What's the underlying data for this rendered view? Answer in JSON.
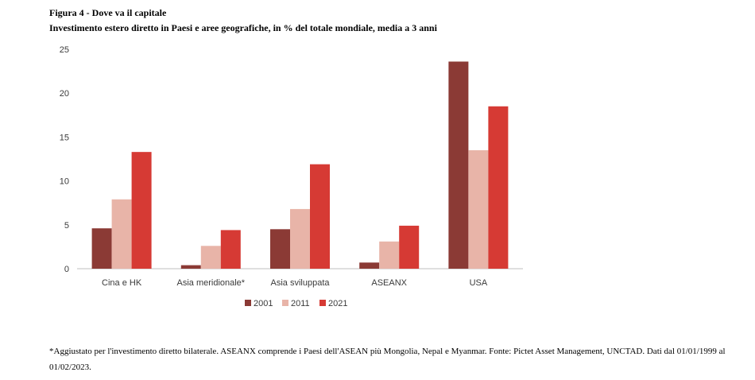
{
  "figure": {
    "title": "Figura 4 - Dove va il capitale",
    "subtitle": "Investimento estero diretto in Paesi e aree geografiche, in % del totale mondiale, media a 3 anni"
  },
  "chart_data": {
    "type": "bar",
    "categories": [
      "Cina e HK",
      "Asia meridionale*",
      "Asia sviluppata",
      "ASEANX",
      "USA"
    ],
    "series": [
      {
        "name": "2001",
        "color": "#8b3a35",
        "values": [
          4.6,
          0.4,
          4.5,
          0.7,
          23.6
        ]
      },
      {
        "name": "2011",
        "color": "#e8b4a8",
        "values": [
          7.9,
          2.6,
          6.8,
          3.1,
          13.5
        ]
      },
      {
        "name": "2021",
        "color": "#d63a34",
        "values": [
          13.3,
          4.4,
          11.9,
          4.9,
          18.5
        ]
      }
    ],
    "y_ticks": [
      "0",
      "5",
      "10",
      "15",
      "20",
      "25"
    ],
    "ylim": [
      0,
      25
    ],
    "grid": false,
    "legend_position": "bottom-center"
  },
  "footnote": "*Aggiustato per l'investimento diretto bilaterale. ASEANX comprende i Paesi dell'ASEAN più Mongolia, Nepal e Myanmar. Fonte: Pictet Asset Management, UNCTAD. Dati dal 01/01/1999 al 01/02/2023."
}
